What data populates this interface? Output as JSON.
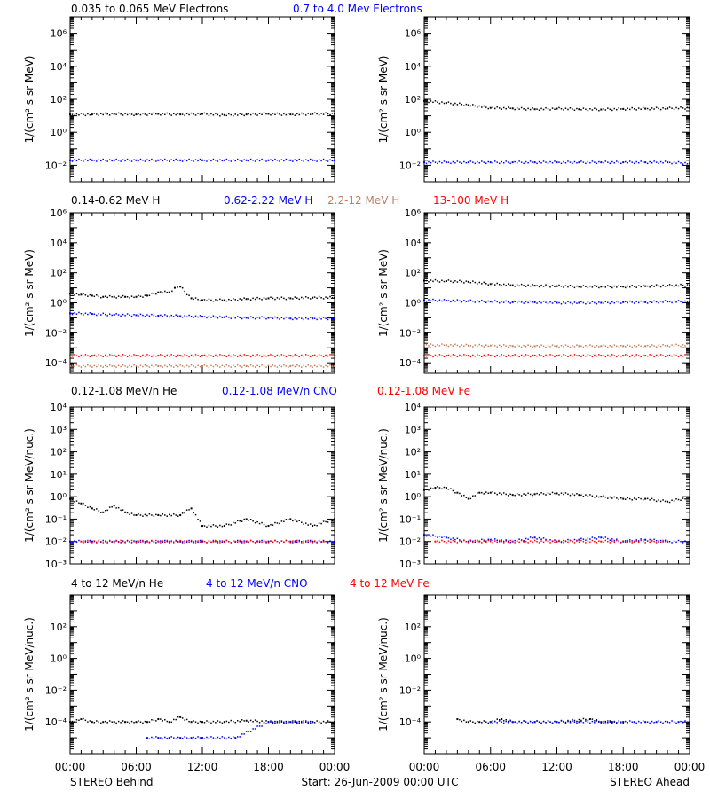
{
  "footer": {
    "left": "STEREO Behind",
    "center": "Start: 26-Jun-2009 00:00 UTC",
    "right": "STEREO Ahead"
  },
  "colors": {
    "black": "#000000",
    "blue": "#0000ff",
    "brown": "#c08060",
    "red": "#ff0000"
  },
  "chart_data": [
    {
      "type": "scatter",
      "legend": [
        {
          "label": "0.035 to 0.065 MeV Electrons",
          "color": "#000000"
        },
        {
          "label": "0.7 to 4.0 Mev Electrons",
          "color": "#0000ff"
        }
      ],
      "ylabel": "1/(cm² s sr MeV)",
      "yscale": "log",
      "ylim": [
        0.001,
        10000000
      ],
      "yticks": [
        {
          "v": 0.01,
          "label": "10⁻²"
        },
        {
          "v": 1,
          "label": "10⁰"
        },
        {
          "v": 100,
          "label": "10²"
        },
        {
          "v": 10000,
          "label": "10⁴"
        },
        {
          "v": 1000000,
          "label": "10⁶"
        }
      ],
      "xticks": [
        "00:00",
        "06:00",
        "12:00",
        "18:00",
        "00:00"
      ],
      "panels": [
        {
          "name": "STEREO Behind",
          "series": [
            {
              "color": "#000000",
              "x": [
                0,
                2,
                4,
                6,
                8,
                10,
                12,
                14,
                16,
                18,
                20,
                22,
                24
              ],
              "y": [
                12,
                12,
                13,
                12,
                13,
                12,
                13,
                11,
                12,
                13,
                12,
                13,
                13
              ]
            },
            {
              "color": "#0000ff",
              "x": [
                0,
                2,
                4,
                6,
                8,
                10,
                12,
                14,
                16,
                18,
                20,
                22,
                24
              ],
              "y": [
                0.02,
                0.02,
                0.02,
                0.02,
                0.02,
                0.02,
                0.02,
                0.02,
                0.02,
                0.02,
                0.02,
                0.02,
                0.02
              ]
            }
          ]
        },
        {
          "name": "STEREO Ahead",
          "series": [
            {
              "color": "#000000",
              "x": [
                0,
                2,
                4,
                6,
                8,
                10,
                12,
                14,
                16,
                18,
                20,
                22,
                24
              ],
              "y": [
                80,
                60,
                45,
                30,
                28,
                25,
                27,
                25,
                24,
                26,
                27,
                28,
                30
              ]
            },
            {
              "color": "#0000ff",
              "x": [
                0,
                2,
                4,
                6,
                8,
                10,
                12,
                14,
                16,
                18,
                20,
                22,
                24
              ],
              "y": [
                0.015,
                0.015,
                0.015,
                0.015,
                0.015,
                0.015,
                0.015,
                0.015,
                0.015,
                0.015,
                0.015,
                0.015,
                0.013
              ]
            }
          ]
        }
      ]
    },
    {
      "type": "scatter",
      "legend": [
        {
          "label": "0.14-0.62 MeV H",
          "color": "#000000"
        },
        {
          "label": "0.62-2.22 MeV H",
          "color": "#0000ff"
        },
        {
          "label": "2.2-12 MeV H",
          "color": "#c08060"
        },
        {
          "label": "13-100 MeV H",
          "color": "#ff0000"
        }
      ],
      "ylabel": "1/(cm² s sr MeV)",
      "yscale": "log",
      "ylim": [
        2e-05,
        1000000
      ],
      "yticks": [
        {
          "v": 0.0001,
          "label": "10⁻⁴"
        },
        {
          "v": 0.01,
          "label": "10⁻²"
        },
        {
          "v": 1,
          "label": "10⁰"
        },
        {
          "v": 100,
          "label": "10²"
        },
        {
          "v": 10000,
          "label": "10⁴"
        },
        {
          "v": 1000000,
          "label": "10⁶"
        }
      ],
      "xticks": [
        "00:00",
        "06:00",
        "12:00",
        "18:00",
        "00:00"
      ],
      "panels": [
        {
          "name": "STEREO Behind",
          "series": [
            {
              "color": "#000000",
              "x": [
                0,
                1,
                2,
                3,
                4,
                5,
                6,
                7,
                8,
                9,
                9.5,
                10,
                11,
                12,
                14,
                16,
                18,
                20,
                22,
                24
              ],
              "y": [
                4,
                3.5,
                3,
                2.5,
                2.5,
                2.5,
                2.5,
                3,
                5,
                5,
                10,
                12,
                2,
                1.5,
                1.5,
                1.8,
                2,
                2,
                2.2,
                2.2
              ]
            },
            {
              "color": "#0000ff",
              "x": [
                0,
                2,
                4,
                6,
                8,
                10,
                12,
                14,
                16,
                18,
                20,
                22,
                24
              ],
              "y": [
                0.2,
                0.18,
                0.16,
                0.15,
                0.14,
                0.13,
                0.12,
                0.11,
                0.1,
                0.1,
                0.09,
                0.09,
                0.09
              ]
            },
            {
              "color": "#c08060",
              "x": [
                0,
                4,
                8,
                12,
                16,
                20,
                24
              ],
              "y": [
                6e-05,
                6e-05,
                6e-05,
                6e-05,
                6e-05,
                6e-05,
                6e-05
              ]
            },
            {
              "color": "#ff0000",
              "x": [
                0,
                2,
                4,
                6,
                8,
                10,
                12,
                14,
                16,
                18,
                20,
                22,
                24
              ],
              "y": [
                0.0003,
                0.0003,
                0.0003,
                0.0003,
                0.0003,
                0.0003,
                0.0003,
                0.0003,
                0.0003,
                0.0003,
                0.0003,
                0.0003,
                0.0003
              ]
            }
          ]
        },
        {
          "name": "STEREO Ahead",
          "series": [
            {
              "color": "#000000",
              "x": [
                0,
                2,
                4,
                6,
                8,
                10,
                12,
                14,
                16,
                18,
                20,
                22,
                24
              ],
              "y": [
                30,
                28,
                25,
                18,
                15,
                14,
                13,
                12,
                12,
                12,
                13,
                14,
                15
              ]
            },
            {
              "color": "#0000ff",
              "x": [
                0,
                2,
                4,
                6,
                8,
                10,
                12,
                14,
                16,
                18,
                20,
                22,
                24
              ],
              "y": [
                1.5,
                1.4,
                1.3,
                1.2,
                1.1,
                1.1,
                1,
                1,
                1,
                1.1,
                1.1,
                1.2,
                1.2
              ]
            },
            {
              "color": "#c08060",
              "x": [
                0,
                2,
                4,
                6,
                8,
                10,
                12,
                14,
                16,
                18,
                20,
                22,
                24
              ],
              "y": [
                0.0015,
                0.0015,
                0.0014,
                0.0014,
                0.0013,
                0.0013,
                0.0013,
                0.0013,
                0.0013,
                0.0013,
                0.0013,
                0.0014,
                0.0015
              ]
            },
            {
              "color": "#ff0000",
              "x": [
                0,
                2,
                4,
                6,
                8,
                10,
                12,
                14,
                16,
                18,
                20,
                22,
                24
              ],
              "y": [
                0.0003,
                0.0003,
                0.0003,
                0.0003,
                0.0003,
                0.0003,
                0.0003,
                0.0003,
                0.0003,
                0.0003,
                0.0003,
                0.0003,
                0.0003
              ]
            }
          ]
        }
      ]
    },
    {
      "type": "scatter",
      "legend": [
        {
          "label": "0.12-1.08 MeV/n He",
          "color": "#000000"
        },
        {
          "label": "0.12-1.08 MeV/n CNO",
          "color": "#0000ff"
        },
        {
          "label": "0.12-1.08 MeV Fe",
          "color": "#ff0000"
        }
      ],
      "ylabel": "1/(cm² s sr MeV/nuc.)",
      "yscale": "log",
      "ylim": [
        0.001,
        10000
      ],
      "yticks": [
        {
          "v": 0.001,
          "label": "10⁻³"
        },
        {
          "v": 0.01,
          "label": "10⁻²"
        },
        {
          "v": 0.1,
          "label": "10⁻¹"
        },
        {
          "v": 1,
          "label": "10⁰"
        },
        {
          "v": 10,
          "label": "10¹"
        },
        {
          "v": 100,
          "label": "10²"
        },
        {
          "v": 1000,
          "label": "10³"
        },
        {
          "v": 10000,
          "label": "10⁴"
        }
      ],
      "xticks": [
        "00:00",
        "06:00",
        "12:00",
        "18:00",
        "00:00"
      ],
      "panels": [
        {
          "name": "STEREO Behind",
          "series": [
            {
              "color": "#000000",
              "x": [
                0,
                1,
                2,
                3,
                4,
                5,
                6,
                8,
                10,
                11,
                12,
                14,
                16,
                18,
                20,
                22,
                24
              ],
              "y": [
                0.8,
                0.5,
                0.3,
                0.2,
                0.4,
                0.2,
                0.15,
                0.15,
                0.15,
                0.3,
                0.05,
                0.05,
                0.1,
                0.05,
                0.1,
                0.05,
                0.1
              ]
            },
            {
              "color": "#0000ff",
              "x": [
                0,
                2,
                4,
                6,
                8,
                10,
                12,
                14,
                16,
                18,
                20,
                22,
                24
              ],
              "y": [
                0.01,
                0.01,
                0.01,
                0.01,
                0.01,
                0.01,
                0.01,
                0.01,
                0.01,
                0.01,
                0.01,
                0.01,
                0.01
              ]
            },
            {
              "color": "#ff0000",
              "x": [
                1,
                7,
                9,
                13,
                15,
                17,
                23
              ],
              "y": [
                0.01,
                0.01,
                0.01,
                0.01,
                0.01,
                0.01,
                0.01
              ]
            }
          ]
        },
        {
          "name": "STEREO Ahead",
          "series": [
            {
              "color": "#000000",
              "x": [
                0,
                1,
                2,
                3,
                4,
                5,
                6,
                8,
                10,
                12,
                14,
                16,
                18,
                20,
                22,
                24
              ],
              "y": [
                2,
                2.5,
                2.5,
                1.5,
                0.8,
                1.5,
                1.5,
                1.2,
                1.3,
                1.4,
                1.2,
                1,
                0.8,
                0.8,
                0.6,
                0.9
              ]
            },
            {
              "color": "#0000ff",
              "x": [
                0,
                2,
                4,
                6,
                8,
                10,
                12,
                14,
                16,
                18,
                20,
                22,
                24
              ],
              "y": [
                0.02,
                0.015,
                0.01,
                0.012,
                0.01,
                0.015,
                0.01,
                0.012,
                0.015,
                0.01,
                0.012,
                0.01,
                0.01
              ]
            },
            {
              "color": "#ff0000",
              "x": [
                1,
                5,
                9,
                12,
                16,
                19,
                22
              ],
              "y": [
                0.01,
                0.01,
                0.01,
                0.01,
                0.01,
                0.01,
                0.01
              ]
            }
          ]
        }
      ]
    },
    {
      "type": "scatter",
      "legend": [
        {
          "label": "4 to 12 MeV/n He",
          "color": "#000000"
        },
        {
          "label": "4 to 12 MeV/n CNO",
          "color": "#0000ff"
        },
        {
          "label": "4 to 12 MeV Fe",
          "color": "#ff0000"
        }
      ],
      "ylabel": "1/(cm² s sr MeV/nuc.)",
      "yscale": "log",
      "ylim": [
        1e-06,
        10000
      ],
      "yticks": [
        {
          "v": 0.0001,
          "label": "10⁻⁴"
        },
        {
          "v": 0.01,
          "label": "10⁻²"
        },
        {
          "v": 1,
          "label": "10⁰"
        },
        {
          "v": 100,
          "label": "10²"
        }
      ],
      "xticks": [
        "00:00",
        "06:00",
        "12:00",
        "18:00",
        "00:00"
      ],
      "panels": [
        {
          "name": "STEREO Behind",
          "series": [
            {
              "color": "#000000",
              "x": [
                0,
                1,
                2,
                3,
                4,
                5,
                6,
                7,
                8,
                9,
                10,
                11,
                12,
                14,
                16,
                18,
                20,
                22,
                24
              ],
              "y": [
                0.0001,
                0.00015,
                0.0001,
                0.0001,
                0.0001,
                0.0001,
                0.0001,
                0.0001,
                0.00015,
                0.0001,
                0.0002,
                0.0001,
                0.0001,
                0.0001,
                0.00012,
                0.0001,
                0.0001,
                0.0001,
                0.0001
              ]
            },
            {
              "color": "#0000ff",
              "x": [
                7,
                8,
                9,
                10,
                11,
                12,
                15,
                18,
                20,
                22
              ],
              "y": [
                1e-05,
                1e-05,
                1e-05,
                1e-05,
                1e-05,
                1e-05,
                1e-05,
                0.0001,
                0.0001,
                0.0001
              ]
            }
          ]
        },
        {
          "name": "STEREO Ahead",
          "series": [
            {
              "color": "#000000",
              "x": [
                3,
                4,
                5,
                6,
                7,
                8,
                10,
                12,
                15,
                16,
                17,
                18
              ],
              "y": [
                0.00015,
                0.0001,
                0.0001,
                0.0001,
                0.00015,
                0.0001,
                0.0001,
                0.0001,
                0.00015,
                0.0001,
                0.0001,
                0.0001
              ]
            },
            {
              "color": "#0000ff",
              "x": [
                6,
                8,
                10,
                12,
                14,
                19,
                20,
                21,
                22,
                23,
                24
              ],
              "y": [
                0.0001,
                0.0001,
                0.0001,
                0.0001,
                0.0001,
                0.0001,
                0.0001,
                0.0001,
                0.0001,
                0.0001,
                0.0001
              ]
            }
          ]
        }
      ]
    }
  ]
}
